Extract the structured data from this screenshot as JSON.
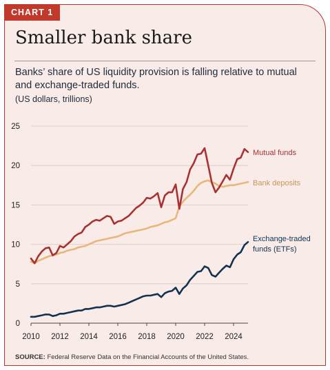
{
  "tag": "CHART 1",
  "title": "Smaller bank share",
  "subtitle": "Banks’ share of US liquidity provision is falling relative to mutual and exchange-traded funds.",
  "units": "(US dollars, trillions)",
  "source_label": "SOURCE:",
  "source_text": "Federal Reserve Data on the Financial Accounts of the United States.",
  "colors": {
    "mutual": "#a83232",
    "bank": "#e6b87a",
    "etf": "#13324f",
    "accent": "#c0392b"
  },
  "chart_data": {
    "type": "line",
    "xlim": [
      2010,
      2025
    ],
    "ylim": [
      0,
      25
    ],
    "x_ticks": [
      "2010",
      "2012",
      "2014",
      "2016",
      "2018",
      "2020",
      "2022",
      "2024"
    ],
    "y_ticks": [
      "0",
      "5",
      "10",
      "15",
      "20",
      "25"
    ],
    "grid": "horizontal",
    "series": [
      {
        "name": "Mutual funds",
        "key": "mutual",
        "points": [
          [
            2010.0,
            8.2
          ],
          [
            2010.25,
            7.6
          ],
          [
            2010.5,
            8.5
          ],
          [
            2010.75,
            9.1
          ],
          [
            2011.0,
            9.5
          ],
          [
            2011.25,
            9.6
          ],
          [
            2011.5,
            8.6
          ],
          [
            2011.75,
            8.9
          ],
          [
            2012.0,
            9.8
          ],
          [
            2012.25,
            9.6
          ],
          [
            2012.5,
            10.0
          ],
          [
            2012.75,
            10.4
          ],
          [
            2013.0,
            11.0
          ],
          [
            2013.25,
            11.3
          ],
          [
            2013.5,
            11.5
          ],
          [
            2013.75,
            12.2
          ],
          [
            2014.0,
            12.5
          ],
          [
            2014.25,
            12.9
          ],
          [
            2014.5,
            13.1
          ],
          [
            2014.75,
            13.0
          ],
          [
            2015.0,
            13.3
          ],
          [
            2015.25,
            13.6
          ],
          [
            2015.5,
            13.5
          ],
          [
            2015.75,
            12.6
          ],
          [
            2016.0,
            12.9
          ],
          [
            2016.25,
            13.0
          ],
          [
            2016.5,
            13.3
          ],
          [
            2016.75,
            13.6
          ],
          [
            2017.0,
            14.1
          ],
          [
            2017.25,
            14.6
          ],
          [
            2017.5,
            14.9
          ],
          [
            2017.75,
            15.3
          ],
          [
            2018.0,
            15.9
          ],
          [
            2018.25,
            15.8
          ],
          [
            2018.5,
            16.1
          ],
          [
            2018.75,
            16.5
          ],
          [
            2019.0,
            14.7
          ],
          [
            2019.25,
            16.2
          ],
          [
            2019.5,
            16.6
          ],
          [
            2019.75,
            16.6
          ],
          [
            2020.0,
            17.6
          ],
          [
            2020.25,
            14.5
          ],
          [
            2020.5,
            17.0
          ],
          [
            2020.75,
            17.9
          ],
          [
            2021.0,
            19.5
          ],
          [
            2021.25,
            20.3
          ],
          [
            2021.5,
            21.4
          ],
          [
            2021.75,
            21.5
          ],
          [
            2022.0,
            22.2
          ],
          [
            2022.25,
            20.0
          ],
          [
            2022.5,
            17.8
          ],
          [
            2022.75,
            16.6
          ],
          [
            2023.0,
            17.2
          ],
          [
            2023.25,
            18.0
          ],
          [
            2023.5,
            18.8
          ],
          [
            2023.75,
            18.2
          ],
          [
            2024.0,
            19.6
          ],
          [
            2024.25,
            20.8
          ],
          [
            2024.5,
            21.0
          ],
          [
            2024.75,
            22.1
          ],
          [
            2025.0,
            21.7
          ]
        ]
      },
      {
        "name": "Bank deposits",
        "key": "bank",
        "points": [
          [
            2010.0,
            7.8
          ],
          [
            2010.25,
            7.6
          ],
          [
            2010.5,
            7.9
          ],
          [
            2010.75,
            8.1
          ],
          [
            2011.0,
            8.3
          ],
          [
            2011.25,
            8.5
          ],
          [
            2011.5,
            8.6
          ],
          [
            2011.75,
            8.7
          ],
          [
            2012.0,
            8.9
          ],
          [
            2012.25,
            9.0
          ],
          [
            2012.5,
            9.2
          ],
          [
            2012.75,
            9.3
          ],
          [
            2013.0,
            9.4
          ],
          [
            2013.25,
            9.6
          ],
          [
            2013.5,
            9.7
          ],
          [
            2013.75,
            9.8
          ],
          [
            2014.0,
            10.0
          ],
          [
            2014.25,
            10.2
          ],
          [
            2014.5,
            10.4
          ],
          [
            2014.75,
            10.5
          ],
          [
            2015.0,
            10.6
          ],
          [
            2015.25,
            10.7
          ],
          [
            2015.5,
            10.8
          ],
          [
            2015.75,
            10.9
          ],
          [
            2016.0,
            11.0
          ],
          [
            2016.25,
            11.2
          ],
          [
            2016.5,
            11.4
          ],
          [
            2016.75,
            11.5
          ],
          [
            2017.0,
            11.6
          ],
          [
            2017.25,
            11.7
          ],
          [
            2017.5,
            11.8
          ],
          [
            2017.75,
            11.9
          ],
          [
            2018.0,
            12.0
          ],
          [
            2018.25,
            12.2
          ],
          [
            2018.5,
            12.3
          ],
          [
            2018.75,
            12.4
          ],
          [
            2019.0,
            12.6
          ],
          [
            2019.25,
            12.8
          ],
          [
            2019.5,
            12.9
          ],
          [
            2019.75,
            13.1
          ],
          [
            2020.0,
            13.3
          ],
          [
            2020.25,
            14.8
          ],
          [
            2020.5,
            15.4
          ],
          [
            2020.75,
            15.9
          ],
          [
            2021.0,
            16.3
          ],
          [
            2021.25,
            16.8
          ],
          [
            2021.5,
            17.4
          ],
          [
            2021.75,
            17.8
          ],
          [
            2022.0,
            18.0
          ],
          [
            2022.25,
            18.1
          ],
          [
            2022.5,
            17.9
          ],
          [
            2022.75,
            17.7
          ],
          [
            2023.0,
            17.4
          ],
          [
            2023.25,
            17.3
          ],
          [
            2023.5,
            17.4
          ],
          [
            2023.75,
            17.5
          ],
          [
            2024.0,
            17.5
          ],
          [
            2024.25,
            17.6
          ],
          [
            2024.5,
            17.7
          ],
          [
            2024.75,
            17.8
          ],
          [
            2025.0,
            17.9
          ]
        ]
      },
      {
        "name": "Exchange-traded funds (ETFs)",
        "key": "etf",
        "points": [
          [
            2010.0,
            0.8
          ],
          [
            2010.25,
            0.8
          ],
          [
            2010.5,
            0.9
          ],
          [
            2010.75,
            1.0
          ],
          [
            2011.0,
            1.1
          ],
          [
            2011.25,
            1.1
          ],
          [
            2011.5,
            0.9
          ],
          [
            2011.75,
            1.0
          ],
          [
            2012.0,
            1.2
          ],
          [
            2012.25,
            1.2
          ],
          [
            2012.5,
            1.3
          ],
          [
            2012.75,
            1.4
          ],
          [
            2013.0,
            1.5
          ],
          [
            2013.25,
            1.6
          ],
          [
            2013.5,
            1.6
          ],
          [
            2013.75,
            1.8
          ],
          [
            2014.0,
            1.8
          ],
          [
            2014.25,
            1.9
          ],
          [
            2014.5,
            2.0
          ],
          [
            2014.75,
            2.0
          ],
          [
            2015.0,
            2.1
          ],
          [
            2015.25,
            2.2
          ],
          [
            2015.5,
            2.2
          ],
          [
            2015.75,
            2.1
          ],
          [
            2016.0,
            2.2
          ],
          [
            2016.25,
            2.3
          ],
          [
            2016.5,
            2.4
          ],
          [
            2016.75,
            2.6
          ],
          [
            2017.0,
            2.8
          ],
          [
            2017.25,
            3.0
          ],
          [
            2017.5,
            3.2
          ],
          [
            2017.75,
            3.4
          ],
          [
            2018.0,
            3.5
          ],
          [
            2018.25,
            3.5
          ],
          [
            2018.5,
            3.6
          ],
          [
            2018.75,
            3.7
          ],
          [
            2019.0,
            3.3
          ],
          [
            2019.25,
            3.8
          ],
          [
            2019.5,
            4.0
          ],
          [
            2019.75,
            4.1
          ],
          [
            2020.0,
            4.5
          ],
          [
            2020.25,
            3.7
          ],
          [
            2020.5,
            4.4
          ],
          [
            2020.75,
            4.8
          ],
          [
            2021.0,
            5.5
          ],
          [
            2021.25,
            6.0
          ],
          [
            2021.5,
            6.5
          ],
          [
            2021.75,
            6.6
          ],
          [
            2022.0,
            7.2
          ],
          [
            2022.25,
            7.0
          ],
          [
            2022.5,
            6.1
          ],
          [
            2022.75,
            5.9
          ],
          [
            2023.0,
            6.4
          ],
          [
            2023.25,
            6.9
          ],
          [
            2023.5,
            7.3
          ],
          [
            2023.75,
            7.1
          ],
          [
            2024.0,
            8.1
          ],
          [
            2024.25,
            8.7
          ],
          [
            2024.5,
            9.0
          ],
          [
            2024.75,
            9.9
          ],
          [
            2025.0,
            10.3
          ]
        ]
      }
    ]
  }
}
